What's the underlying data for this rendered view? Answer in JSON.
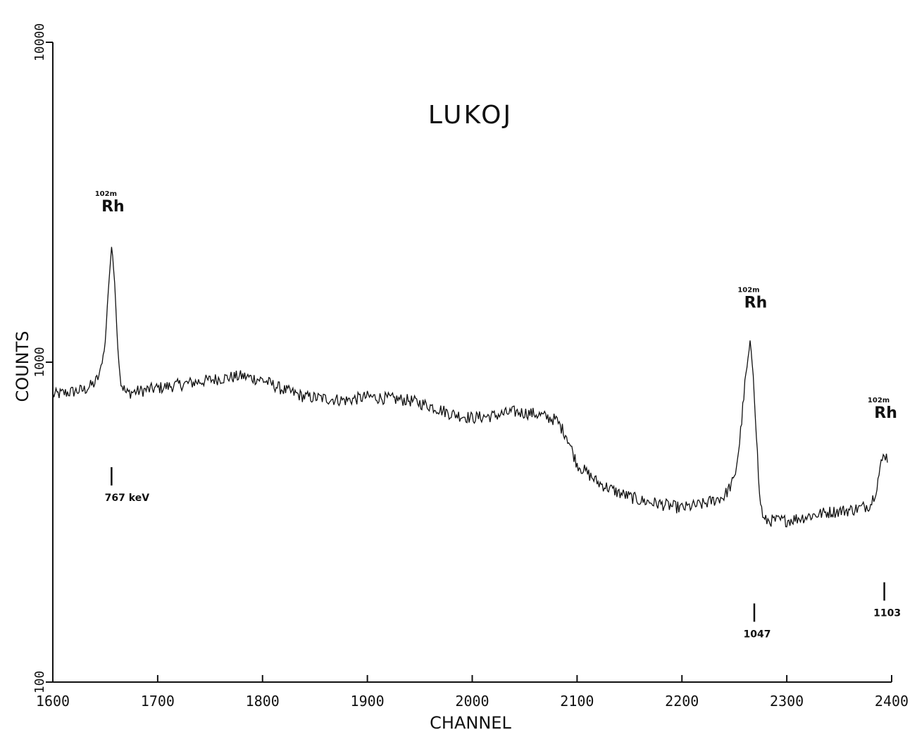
{
  "chart_data": {
    "type": "line",
    "title": "LUKOJ",
    "xlabel": "CHANNEL",
    "ylabel": "COUNTS",
    "xlim": [
      1600,
      2400
    ],
    "ylim": [
      100,
      10000
    ],
    "yscale": "log",
    "x_ticks": [
      "1600",
      "1700",
      "1800",
      "1900",
      "2000",
      "2100",
      "2200",
      "2300",
      "2400"
    ],
    "y_ticks": [
      "100",
      "1000",
      "10000"
    ],
    "grid": false,
    "series": [
      {
        "x": [
          1600,
          1610,
          1620,
          1630,
          1640,
          1645,
          1650,
          1653,
          1656,
          1659,
          1662,
          1665,
          1670,
          1680,
          1700,
          1720,
          1740,
          1760,
          1780,
          1800,
          1820,
          1840,
          1860,
          1880,
          1900,
          1920,
          1940,
          1960,
          1980,
          2000,
          2020,
          2040,
          2060,
          2080,
          2090,
          2100,
          2120,
          2140,
          2160,
          2180,
          2200,
          2220,
          2240,
          2250,
          2255,
          2260,
          2265,
          2268,
          2271,
          2274,
          2278,
          2285,
          2300,
          2320,
          2340,
          2360,
          2370,
          2380,
          2385,
          2390,
          2393,
          2396
        ],
        "values": [
          790,
          800,
          810,
          820,
          860,
          920,
          1150,
          1700,
          2300,
          1800,
          1100,
          860,
          800,
          810,
          830,
          850,
          870,
          890,
          905,
          880,
          820,
          780,
          770,
          760,
          780,
          770,
          760,
          730,
          690,
          670,
          680,
          700,
          690,
          660,
          590,
          480,
          420,
          390,
          370,
          360,
          350,
          360,
          380,
          430,
          560,
          850,
          1150,
          930,
          600,
          380,
          320,
          320,
          320,
          330,
          340,
          345,
          350,
          360,
          400,
          480,
          520,
          500
        ]
      }
    ],
    "annotations": [
      {
        "isotope": "Rh",
        "mass": "102m",
        "energy": "767 keV",
        "channel": 1656
      },
      {
        "isotope": "Rh",
        "mass": "102m",
        "energy": "1047",
        "channel": 2269
      },
      {
        "isotope": "Rh",
        "mass": "102m",
        "energy": "1103",
        "channel": 2393
      }
    ]
  }
}
